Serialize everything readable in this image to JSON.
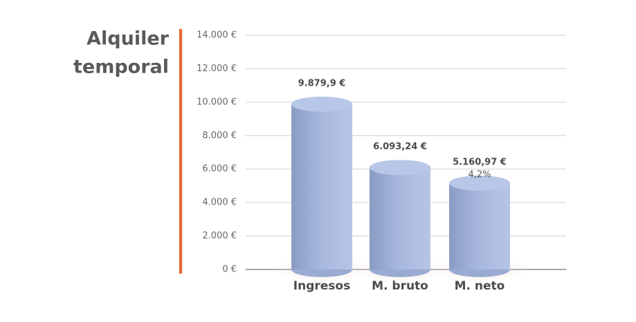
{
  "chart_data": {
    "type": "bar",
    "title": [
      "Alquiler",
      "temporal"
    ],
    "categories": [
      "Ingresos",
      "M. bruto",
      "M. neto"
    ],
    "values": [
      9879.9,
      6093.24,
      5160.97
    ],
    "value_labels": [
      "9.879,9 €",
      "6.093,24 €",
      "5.160,97 €"
    ],
    "annotations": [
      "4,2%"
    ],
    "color": "#a9b9de",
    "ylim": [
      0,
      14000
    ],
    "yticks": [
      {
        "value": 0,
        "label": "0 €"
      },
      {
        "value": 2000,
        "label": "2.000 €"
      },
      {
        "value": 4000,
        "label": "4.000 €"
      },
      {
        "value": 6000,
        "label": "6.000 €"
      },
      {
        "value": 8000,
        "label": "8.000 €"
      },
      {
        "value": 10000,
        "label": "10.000 €"
      },
      {
        "value": 12000,
        "label": "12.000 €"
      },
      {
        "value": 14000,
        "label": "14.000 €"
      }
    ],
    "grid": true
  }
}
